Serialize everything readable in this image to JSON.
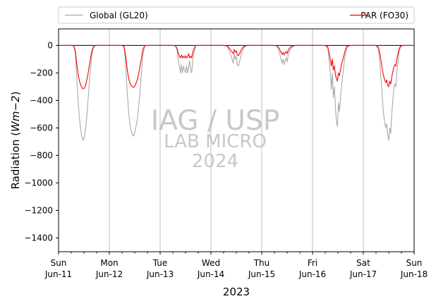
{
  "chart_data": {
    "type": "line",
    "xlabel": "2023",
    "ylabel": "Radiation (Wm−2)",
    "ylim": [
      -1500,
      120
    ],
    "yticks": [
      0,
      -200,
      -400,
      -600,
      -800,
      -1000,
      -1200,
      -1400
    ],
    "xlim_days": [
      0,
      7
    ],
    "x_ticks": [
      {
        "day": "Sun",
        "date": "Jun-11"
      },
      {
        "day": "Mon",
        "date": "Jun-12"
      },
      {
        "day": "Tue",
        "date": "Jun-13"
      },
      {
        "day": "Wed",
        "date": "Jun-14"
      },
      {
        "day": "Thu",
        "date": "Jun-15"
      },
      {
        "day": "Fri",
        "date": "Jun-16"
      },
      {
        "day": "Sat",
        "date": "Jun-17"
      },
      {
        "day": "Sun",
        "date": "Jun-18"
      }
    ],
    "grid": "vertical",
    "zero_line": true,
    "legend_position": "top, above plot",
    "series": [
      {
        "name": "Global (GL20)",
        "color": "#a9a9a9",
        "points": [
          [
            0.0,
            0
          ],
          [
            0.25,
            0
          ],
          [
            0.3,
            -5
          ],
          [
            0.33,
            -60
          ],
          [
            0.36,
            -250
          ],
          [
            0.39,
            -430
          ],
          [
            0.42,
            -560
          ],
          [
            0.45,
            -650
          ],
          [
            0.48,
            -690
          ],
          [
            0.5,
            -680
          ],
          [
            0.53,
            -610
          ],
          [
            0.56,
            -500
          ],
          [
            0.59,
            -350
          ],
          [
            0.62,
            -200
          ],
          [
            0.66,
            -60
          ],
          [
            0.7,
            -5
          ],
          [
            0.75,
            0
          ],
          [
            1.25,
            0
          ],
          [
            1.29,
            -10
          ],
          [
            1.32,
            -120
          ],
          [
            1.35,
            -330
          ],
          [
            1.38,
            -490
          ],
          [
            1.41,
            -590
          ],
          [
            1.45,
            -650
          ],
          [
            1.48,
            -660
          ],
          [
            1.51,
            -620
          ],
          [
            1.55,
            -540
          ],
          [
            1.58,
            -430
          ],
          [
            1.62,
            -260
          ],
          [
            1.66,
            -70
          ],
          [
            1.7,
            0
          ],
          [
            1.75,
            0
          ],
          [
            2.25,
            0
          ],
          [
            2.3,
            -3
          ],
          [
            2.33,
            -30
          ],
          [
            2.36,
            -110
          ],
          [
            2.38,
            -150
          ],
          [
            2.4,
            -200
          ],
          [
            2.42,
            -140
          ],
          [
            2.44,
            -200
          ],
          [
            2.46,
            -150
          ],
          [
            2.48,
            -180
          ],
          [
            2.5,
            -200
          ],
          [
            2.52,
            -150
          ],
          [
            2.54,
            -200
          ],
          [
            2.56,
            -160
          ],
          [
            2.58,
            -110
          ],
          [
            2.6,
            -180
          ],
          [
            2.62,
            -200
          ],
          [
            2.65,
            -80
          ],
          [
            2.7,
            0
          ],
          [
            2.75,
            0
          ],
          [
            3.25,
            0
          ],
          [
            3.32,
            -5
          ],
          [
            3.36,
            -40
          ],
          [
            3.4,
            -80
          ],
          [
            3.44,
            -130
          ],
          [
            3.46,
            -60
          ],
          [
            3.48,
            -100
          ],
          [
            3.5,
            -80
          ],
          [
            3.52,
            -140
          ],
          [
            3.54,
            -150
          ],
          [
            3.57,
            -110
          ],
          [
            3.6,
            -60
          ],
          [
            3.64,
            -20
          ],
          [
            3.7,
            0
          ],
          [
            3.75,
            0
          ],
          [
            4.25,
            0
          ],
          [
            4.3,
            -5
          ],
          [
            4.33,
            -30
          ],
          [
            4.36,
            -70
          ],
          [
            4.38,
            -100
          ],
          [
            4.4,
            -130
          ],
          [
            4.42,
            -100
          ],
          [
            4.44,
            -140
          ],
          [
            4.46,
            -110
          ],
          [
            4.48,
            -90
          ],
          [
            4.5,
            -120
          ],
          [
            4.52,
            -70
          ],
          [
            4.56,
            -30
          ],
          [
            4.6,
            -10
          ],
          [
            4.66,
            0
          ],
          [
            4.75,
            0
          ],
          [
            5.25,
            0
          ],
          [
            5.3,
            -20
          ],
          [
            5.33,
            -120
          ],
          [
            5.36,
            -250
          ],
          [
            5.37,
            -320
          ],
          [
            5.39,
            -200
          ],
          [
            5.41,
            -380
          ],
          [
            5.43,
            -300
          ],
          [
            5.45,
            -450
          ],
          [
            5.47,
            -550
          ],
          [
            5.49,
            -590
          ],
          [
            5.51,
            -420
          ],
          [
            5.53,
            -480
          ],
          [
            5.55,
            -380
          ],
          [
            5.57,
            -300
          ],
          [
            5.6,
            -200
          ],
          [
            5.64,
            -80
          ],
          [
            5.68,
            -10
          ],
          [
            5.75,
            0
          ],
          [
            6.25,
            0
          ],
          [
            6.3,
            -30
          ],
          [
            6.33,
            -150
          ],
          [
            6.36,
            -300
          ],
          [
            6.39,
            -470
          ],
          [
            6.42,
            -560
          ],
          [
            6.44,
            -600
          ],
          [
            6.46,
            -570
          ],
          [
            6.48,
            -650
          ],
          [
            6.5,
            -690
          ],
          [
            6.52,
            -600
          ],
          [
            6.54,
            -640
          ],
          [
            6.56,
            -500
          ],
          [
            6.58,
            -400
          ],
          [
            6.6,
            -320
          ],
          [
            6.62,
            -280
          ],
          [
            6.64,
            -300
          ],
          [
            6.66,
            -200
          ],
          [
            6.7,
            -60
          ],
          [
            6.73,
            -10
          ],
          [
            6.78,
            0
          ],
          [
            7.0,
            0
          ]
        ]
      },
      {
        "name": "PAR (FO30)",
        "color": "#ff0000",
        "points": [
          [
            0.0,
            0
          ],
          [
            0.25,
            0
          ],
          [
            0.3,
            -3
          ],
          [
            0.33,
            -40
          ],
          [
            0.36,
            -140
          ],
          [
            0.39,
            -220
          ],
          [
            0.42,
            -270
          ],
          [
            0.45,
            -300
          ],
          [
            0.48,
            -315
          ],
          [
            0.51,
            -310
          ],
          [
            0.54,
            -280
          ],
          [
            0.57,
            -230
          ],
          [
            0.6,
            -160
          ],
          [
            0.63,
            -90
          ],
          [
            0.66,
            -30
          ],
          [
            0.7,
            -3
          ],
          [
            0.75,
            0
          ],
          [
            1.25,
            0
          ],
          [
            1.29,
            -8
          ],
          [
            1.32,
            -70
          ],
          [
            1.35,
            -170
          ],
          [
            1.38,
            -240
          ],
          [
            1.41,
            -280
          ],
          [
            1.45,
            -300
          ],
          [
            1.48,
            -305
          ],
          [
            1.51,
            -290
          ],
          [
            1.55,
            -250
          ],
          [
            1.58,
            -200
          ],
          [
            1.62,
            -120
          ],
          [
            1.66,
            -30
          ],
          [
            1.7,
            0
          ],
          [
            1.75,
            0
          ],
          [
            2.25,
            0
          ],
          [
            2.3,
            -3
          ],
          [
            2.33,
            -20
          ],
          [
            2.36,
            -60
          ],
          [
            2.38,
            -80
          ],
          [
            2.4,
            -90
          ],
          [
            2.42,
            -70
          ],
          [
            2.44,
            -90
          ],
          [
            2.46,
            -80
          ],
          [
            2.48,
            -90
          ],
          [
            2.5,
            -75
          ],
          [
            2.52,
            -90
          ],
          [
            2.54,
            -85
          ],
          [
            2.56,
            -60
          ],
          [
            2.58,
            -90
          ],
          [
            2.6,
            -80
          ],
          [
            2.62,
            -90
          ],
          [
            2.65,
            -40
          ],
          [
            2.7,
            0
          ],
          [
            2.75,
            0
          ],
          [
            3.25,
            0
          ],
          [
            3.32,
            -3
          ],
          [
            3.36,
            -20
          ],
          [
            3.4,
            -40
          ],
          [
            3.44,
            -60
          ],
          [
            3.46,
            -30
          ],
          [
            3.48,
            -50
          ],
          [
            3.5,
            -40
          ],
          [
            3.52,
            -70
          ],
          [
            3.54,
            -75
          ],
          [
            3.57,
            -55
          ],
          [
            3.6,
            -30
          ],
          [
            3.64,
            -10
          ],
          [
            3.7,
            0
          ],
          [
            3.75,
            0
          ],
          [
            4.25,
            0
          ],
          [
            4.3,
            -3
          ],
          [
            4.33,
            -15
          ],
          [
            4.36,
            -35
          ],
          [
            4.38,
            -50
          ],
          [
            4.4,
            -65
          ],
          [
            4.42,
            -50
          ],
          [
            4.44,
            -70
          ],
          [
            4.46,
            -55
          ],
          [
            4.48,
            -45
          ],
          [
            4.5,
            -60
          ],
          [
            4.52,
            -35
          ],
          [
            4.56,
            -15
          ],
          [
            4.6,
            -5
          ],
          [
            4.66,
            0
          ],
          [
            4.75,
            0
          ],
          [
            5.25,
            0
          ],
          [
            5.3,
            -10
          ],
          [
            5.33,
            -60
          ],
          [
            5.36,
            -120
          ],
          [
            5.37,
            -150
          ],
          [
            5.39,
            -100
          ],
          [
            5.41,
            -180
          ],
          [
            5.43,
            -150
          ],
          [
            5.45,
            -210
          ],
          [
            5.47,
            -240
          ],
          [
            5.49,
            -260
          ],
          [
            5.51,
            -200
          ],
          [
            5.53,
            -220
          ],
          [
            5.55,
            -180
          ],
          [
            5.57,
            -140
          ],
          [
            5.6,
            -100
          ],
          [
            5.64,
            -40
          ],
          [
            5.68,
            -5
          ],
          [
            5.75,
            0
          ],
          [
            6.25,
            0
          ],
          [
            6.3,
            -15
          ],
          [
            6.33,
            -70
          ],
          [
            6.36,
            -140
          ],
          [
            6.39,
            -210
          ],
          [
            6.42,
            -250
          ],
          [
            6.44,
            -270
          ],
          [
            6.46,
            -250
          ],
          [
            6.48,
            -290
          ],
          [
            6.5,
            -300
          ],
          [
            6.52,
            -260
          ],
          [
            6.54,
            -280
          ],
          [
            6.56,
            -230
          ],
          [
            6.58,
            -190
          ],
          [
            6.6,
            -160
          ],
          [
            6.62,
            -140
          ],
          [
            6.64,
            -150
          ],
          [
            6.66,
            -100
          ],
          [
            6.7,
            -30
          ],
          [
            6.73,
            -5
          ],
          [
            6.78,
            0
          ],
          [
            7.0,
            0
          ]
        ]
      }
    ]
  },
  "watermark": {
    "line1": "IAG / USP",
    "line2": "LAB MICRO",
    "line3": "2024"
  }
}
